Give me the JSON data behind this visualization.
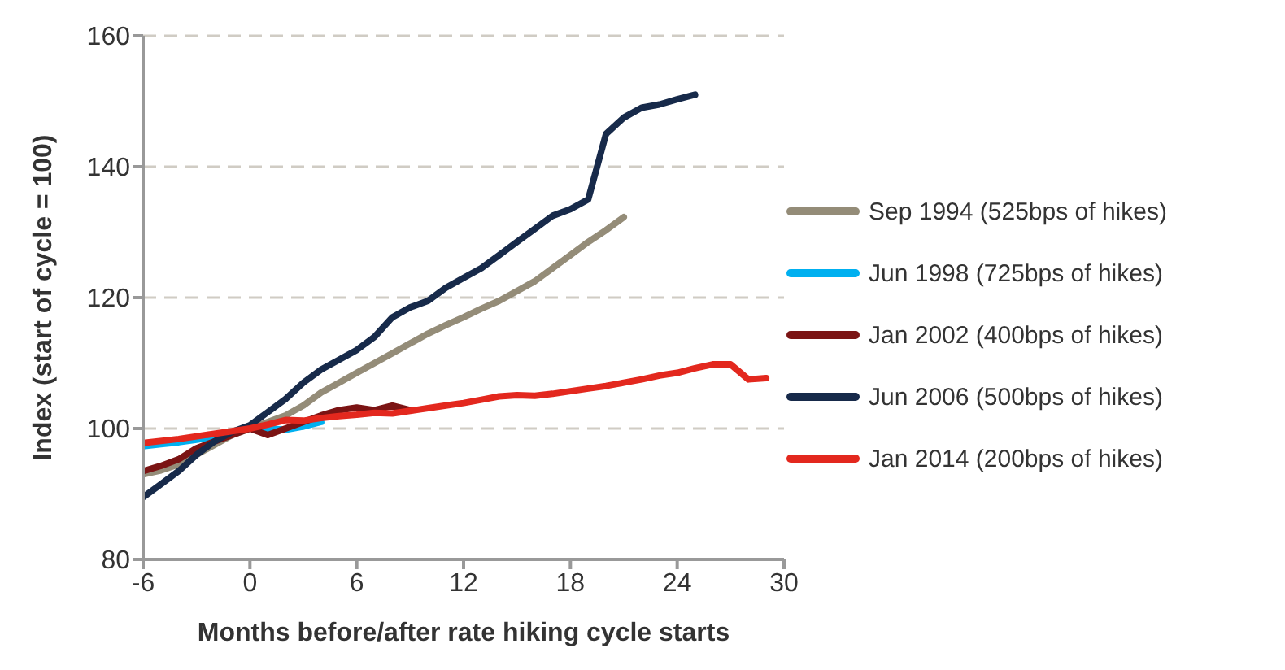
{
  "chart_data": {
    "type": "line",
    "xlabel": "Months before/after rate hiking cycle starts",
    "ylabel": "Index (start of cycle = 100)",
    "xlim": [
      -6,
      30
    ],
    "xticks": [
      -6,
      0,
      6,
      12,
      18,
      24,
      30
    ],
    "ylim": [
      80,
      160
    ],
    "yticks": [
      80,
      100,
      120,
      140,
      160
    ],
    "grid": "y",
    "legend": "right",
    "line_style": "solid",
    "marker": "none",
    "series": [
      {
        "name": "Sep 1994 (525bps of hikes)",
        "color": "#948c78",
        "x": [
          -6,
          -5,
          -4,
          -3,
          -2,
          -1,
          0,
          1,
          2,
          3,
          4,
          5,
          6,
          7,
          8,
          9,
          10,
          11,
          12,
          13,
          14,
          15,
          16,
          17,
          18,
          19,
          20,
          21
        ],
        "values": [
          93,
          93.6,
          94.5,
          96,
          97.5,
          99,
          100,
          101,
          102,
          103.5,
          105.5,
          107,
          108.5,
          110,
          111.5,
          113,
          114.5,
          115.8,
          117,
          118.3,
          119.5,
          121,
          122.5,
          124.5,
          126.5,
          128.5,
          130.3,
          132.3
        ]
      },
      {
        "name": "Jun 1998 (725bps of hikes)",
        "color": "#00b0f0",
        "x": [
          -6,
          -5,
          -4,
          -3,
          -2,
          -1,
          0,
          1,
          2,
          3,
          4
        ],
        "values": [
          97.3,
          97.6,
          97.9,
          98.3,
          98.7,
          99.3,
          100,
          100,
          99.8,
          100.3,
          101
        ]
      },
      {
        "name": "Jan 2002 (400bps of hikes)",
        "color": "#7b1414",
        "x": [
          -6,
          -5,
          -4,
          -3,
          -2,
          -1,
          0,
          1,
          2,
          3,
          4,
          5,
          6,
          7,
          8,
          9
        ],
        "values": [
          93.5,
          94.3,
          95.3,
          97,
          98,
          99,
          100,
          99,
          100,
          101,
          102,
          102.8,
          103.2,
          102.8,
          103.5,
          102.8
        ]
      },
      {
        "name": "Jun 2006 (500bps of hikes)",
        "color": "#172a4a",
        "x": [
          -6,
          -5,
          -4,
          -3,
          -2,
          -1,
          0,
          1,
          2,
          3,
          4,
          5,
          6,
          7,
          8,
          9,
          10,
          11,
          12,
          13,
          14,
          15,
          16,
          17,
          18,
          19,
          20,
          21,
          22,
          23,
          24,
          25
        ],
        "values": [
          89.5,
          91.5,
          93.5,
          96,
          98,
          99.5,
          100.5,
          102.5,
          104.5,
          107,
          109,
          110.5,
          112,
          114,
          117,
          118.5,
          119.5,
          121.5,
          123,
          124.5,
          126.5,
          128.5,
          130.5,
          132.5,
          133.5,
          135,
          145,
          147.5,
          149,
          149.5,
          150.3,
          151
        ]
      },
      {
        "name": "Jan 2014 (200bps of hikes)",
        "color": "#e3281e",
        "x": [
          -6,
          -4,
          -2,
          0,
          1,
          2,
          3,
          4,
          5,
          6,
          7,
          8,
          9,
          10,
          11,
          12,
          13,
          14,
          15,
          16,
          17,
          18,
          19,
          20,
          21,
          22,
          23,
          24,
          25,
          26,
          27,
          28,
          29
        ],
        "values": [
          97.8,
          98.4,
          99.2,
          100,
          100.6,
          101.3,
          101.2,
          101.6,
          101.9,
          102.1,
          102.4,
          102.3,
          102.7,
          103.1,
          103.5,
          103.9,
          104.4,
          104.9,
          105.1,
          105,
          105.3,
          105.7,
          106.1,
          106.5,
          107,
          107.5,
          108.1,
          108.5,
          109.2,
          109.8,
          109.8,
          107.5,
          107.7
        ]
      }
    ]
  }
}
